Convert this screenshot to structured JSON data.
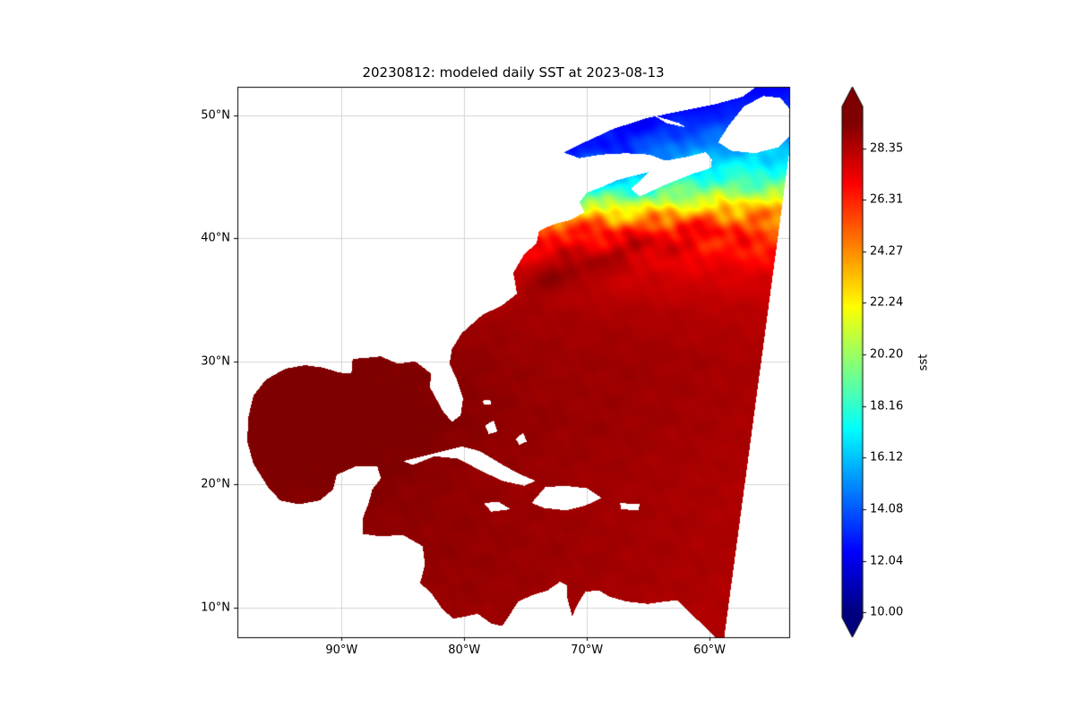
{
  "figure": {
    "title": "20230812: modeled daily SST at 2023-08-13"
  },
  "axes": {
    "x_ticks": [
      {
        "label": "90°W",
        "lon": -90
      },
      {
        "label": "80°W",
        "lon": -80
      },
      {
        "label": "70°W",
        "lon": -70
      },
      {
        "label": "60°W",
        "lon": -60
      }
    ],
    "y_ticks": [
      {
        "label": "50°N",
        "lat": 50
      },
      {
        "label": "40°N",
        "lat": 40
      },
      {
        "label": "30°N",
        "lat": 30
      },
      {
        "label": "20°N",
        "lat": 20
      },
      {
        "label": "10°N",
        "lat": 10
      }
    ],
    "lon_range": [
      -98.5,
      -53.5
    ],
    "lat_range": [
      7.6,
      52.3
    ],
    "grid": "on",
    "grid_color": "#d4d4d4"
  },
  "colorbar": {
    "label": "sst",
    "colormap": "jet",
    "extend": "both",
    "vmin": 10.0,
    "vmax": 29.37,
    "ticks": [
      {
        "label": "28.35",
        "value": 28.35
      },
      {
        "label": "26.31",
        "value": 26.31
      },
      {
        "label": "24.27",
        "value": 24.27
      },
      {
        "label": "22.24",
        "value": 22.24
      },
      {
        "label": "20.20",
        "value": 20.2
      },
      {
        "label": "18.16",
        "value": 18.16
      },
      {
        "label": "16.12",
        "value": 16.12
      },
      {
        "label": "14.08",
        "value": 14.08
      },
      {
        "label": "12.04",
        "value": 12.04
      },
      {
        "label": "10.00",
        "value": 10.0
      }
    ]
  },
  "chart_data": {
    "type": "heatmap",
    "title": "20230812: modeled daily SST at 2023-08-13",
    "variable": "sst",
    "colormap": "jet",
    "vmin": 10.0,
    "vmax": 29.37,
    "extend": "both",
    "colorbar_ticks": [
      28.35,
      26.31,
      24.27,
      22.24,
      20.2,
      18.16,
      16.12,
      14.08,
      12.04,
      10.0
    ],
    "lon_range": [
      -98.5,
      -53.5
    ],
    "lat_range": [
      7.6,
      52.3
    ],
    "land_masked": true,
    "x_lons": [
      -98.5,
      -94,
      -89.5,
      -85,
      -80.5,
      -76,
      -71.5,
      -67,
      -62.5,
      -58,
      -53.5
    ],
    "y_lats": [
      7.6,
      14,
      20,
      25,
      30,
      34,
      37,
      39,
      40.5,
      42,
      43.5,
      45,
      47,
      49.5,
      52.3
    ],
    "values": [
      [
        28.6,
        28.7,
        28.8,
        28.8,
        28.8,
        28.8,
        28.7,
        28.6,
        28.5,
        28.4,
        28.3
      ],
      [
        28.8,
        28.9,
        29.0,
        29.0,
        29.0,
        28.9,
        28.8,
        28.7,
        28.6,
        28.5,
        28.4
      ],
      [
        29.3,
        29.4,
        29.3,
        29.2,
        29.0,
        28.9,
        28.8,
        28.7,
        28.6,
        28.5,
        28.4
      ],
      [
        29.6,
        29.7,
        29.6,
        29.5,
        29.3,
        29.0,
        28.9,
        28.8,
        28.7,
        28.6,
        28.5
      ],
      [
        29.4,
        29.5,
        29.5,
        29.3,
        29.1,
        28.9,
        28.8,
        28.8,
        28.7,
        28.6,
        28.5
      ],
      [
        28.8,
        28.9,
        29.0,
        28.9,
        28.8,
        28.7,
        28.6,
        28.5,
        28.4,
        28.3,
        28.2
      ],
      [
        27.4,
        27.6,
        27.8,
        27.9,
        28.0,
        28.0,
        27.9,
        27.8,
        27.7,
        27.6,
        27.5
      ],
      [
        25.8,
        26.0,
        26.4,
        26.8,
        27.2,
        27.3,
        27.2,
        27.0,
        26.8,
        26.6,
        26.4
      ],
      [
        24.2,
        24.6,
        25.0,
        25.6,
        26.2,
        26.5,
        26.4,
        26.2,
        26.0,
        25.8,
        25.6
      ],
      [
        19.5,
        20.0,
        20.8,
        21.6,
        23.0,
        23.8,
        23.4,
        23.0,
        23.5,
        23.2,
        23.0
      ],
      [
        15.5,
        16.0,
        16.5,
        17.2,
        18.3,
        19.3,
        18.8,
        18.5,
        20.0,
        20.4,
        20.0
      ],
      [
        13.8,
        14.0,
        14.3,
        14.8,
        15.3,
        15.8,
        15.4,
        16.0,
        17.5,
        18.0,
        17.8
      ],
      [
        12.0,
        12.2,
        12.4,
        12.7,
        12.9,
        13.0,
        12.8,
        13.5,
        15.0,
        16.0,
        16.5
      ],
      [
        11.0,
        11.1,
        11.3,
        11.5,
        11.7,
        11.9,
        11.8,
        12.0,
        13.0,
        13.5,
        14.0
      ],
      [
        10.2,
        10.3,
        10.5,
        10.6,
        10.8,
        11.0,
        11.0,
        11.2,
        11.5,
        12.0,
        12.5
      ]
    ]
  }
}
